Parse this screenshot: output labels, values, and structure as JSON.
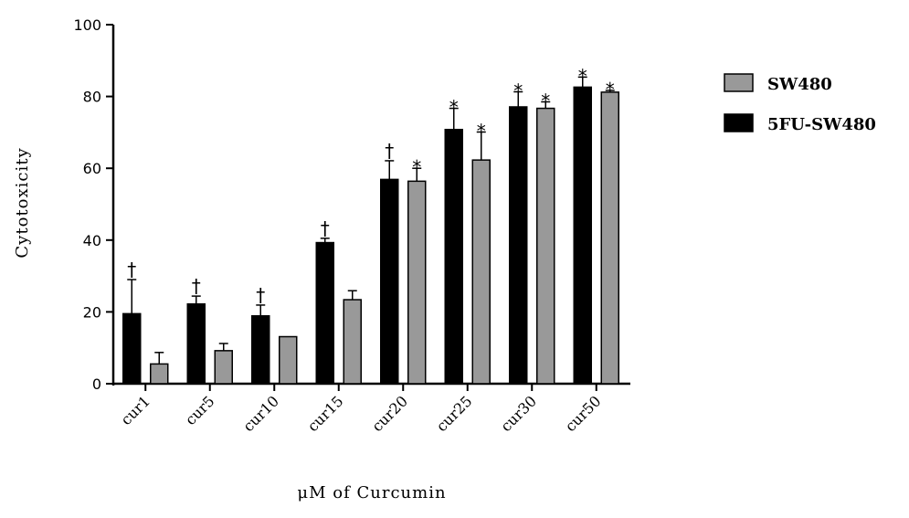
{
  "chart_data": {
    "type": "bar",
    "categories": [
      "cur1",
      "cur5",
      "cur10",
      "cur15",
      "cur20",
      "cur25",
      "cur30",
      "cur50"
    ],
    "series": [
      {
        "name": "5FU-SW480",
        "color": "#000000",
        "values": [
          19.5,
          22.2,
          18.9,
          39.3,
          56.9,
          70.8,
          77.1,
          82.6
        ],
        "errors": [
          9.5,
          2.2,
          3.0,
          1.2,
          5.2,
          5.9,
          4.2,
          2.8
        ],
        "marks": [
          "†",
          "†",
          "†",
          "†",
          "†",
          "*",
          "*",
          "*"
        ]
      },
      {
        "name": "SW480",
        "color": "#999999",
        "values": [
          5.5,
          9.2,
          13.1,
          23.4,
          56.4,
          62.3,
          76.7,
          81.2
        ],
        "errors": [
          3.2,
          2.0,
          0,
          2.5,
          3.6,
          7.8,
          1.8,
          0.5
        ],
        "marks": [
          "",
          "",
          "",
          "",
          "*",
          "*",
          "*",
          "*"
        ]
      }
    ],
    "ylim": [
      0,
      100
    ],
    "yticks": [
      0,
      20,
      40,
      60,
      80,
      100
    ],
    "xlabel": "μM of Curcumin",
    "ylabel": "Cytotoxicity",
    "legend": {
      "placement": "right",
      "entries": [
        "SW480",
        "5FU-SW480"
      ]
    }
  }
}
